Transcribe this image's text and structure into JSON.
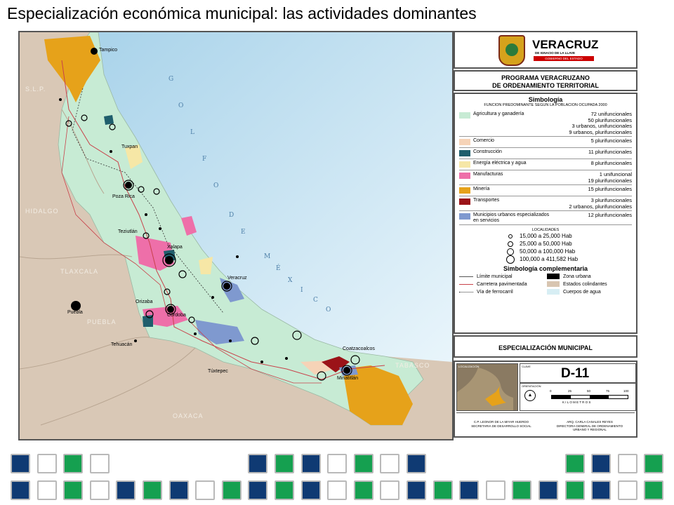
{
  "slide": {
    "title": "Especialización económica municipal: las actividades dominantes"
  },
  "map": {
    "city_labels": {
      "tampico": "Tampico",
      "tuxpan": "Tuxpan",
      "poza_rica": "Poza Rica",
      "teziutlan": "Teziutlán",
      "xalapa": "Xalapa",
      "veracruz": "Veracruz",
      "orizaba": "Orizaba",
      "cordoba": "Córdoba",
      "puebla": "Puebla",
      "tehuacan": "Tehuacán",
      "tuxtepec": "Túxtepec",
      "coatzacoalcos": "Coatzacoalcos",
      "minatitlan": "Minatitlán"
    },
    "region_labels": {
      "slp": "S.L.P.",
      "hidalgo": "HIDALGO",
      "tlaxcala": "TLAXCALA",
      "puebla": "PUEBLA",
      "oaxaca": "OAXACA",
      "tabasco": "TABASCO"
    },
    "sea_letters": {
      "golfo": [
        "G",
        "O",
        "L",
        "F",
        "O"
      ],
      "de": [
        "D",
        "E"
      ],
      "mexico": [
        "M",
        "É",
        "X",
        "I",
        "C",
        "O"
      ]
    }
  },
  "header": {
    "brand": "VERACRUZ",
    "brand_sub": "DE IGNACIO DE LA LLAVE",
    "brand_gov": "GOBIERNO DEL ESTADO",
    "program_line1": "PROGRAMA VERACRUZANO",
    "program_line2": "DE ORDENAMIENTO TERRITORIAL"
  },
  "legend": {
    "title": "Simbología",
    "subtitle": "FUNCION PREDOMINANTE SEGUN LA POBLACION OCUPADA 2000",
    "items": [
      {
        "name": "Agricultura y ganadería",
        "color": "#c7ebd4",
        "counts": [
          "72 unifuncionales",
          "50 plurifuncionales",
          "3 urbanos, unifuncionales",
          "9 urbanos, plurifuncionales"
        ]
      },
      {
        "name": "Comercio",
        "color": "#f6d3b7",
        "counts": [
          "5 plurifuncionales"
        ]
      },
      {
        "name": "Construcción",
        "color": "#1f5e6c",
        "counts": [
          "11 plurifuncionales"
        ]
      },
      {
        "name": "Energía eléctrica y agua",
        "color": "#f6e7a6",
        "counts": [
          "8 plurifuncionales"
        ]
      },
      {
        "name": "Manufacturas",
        "color": "#ee6fa9",
        "counts": [
          "1 unifuncional",
          "19 plurifuncionales"
        ]
      },
      {
        "name": "Minería",
        "color": "#e6a21a",
        "counts": [
          "15 plurifuncionales"
        ]
      },
      {
        "name": "Transportes",
        "color": "#9b1318",
        "counts": [
          "3 plurifuncionales",
          "2 urbanos, plurifuncionales"
        ]
      },
      {
        "name": "Municipios urbanos especializados en servicios",
        "color": "#7f99cf",
        "counts": [
          "12 plurifuncionales"
        ]
      }
    ],
    "localities_title": "LOCALIDADES",
    "localities": [
      {
        "range": "15,000 a   25,000 Hab"
      },
      {
        "range": "25,000 a   50,000 Hab"
      },
      {
        "range": "50,000 a 100,000 Hab"
      },
      {
        "range": "100,000 a 411,582 Hab"
      }
    ],
    "complementary_title": "Simbología complementaria",
    "complementary": [
      {
        "label": "Límite municipal"
      },
      {
        "label": "Zona urbana",
        "color": "#000000"
      },
      {
        "label": "Carretera pavimentada"
      },
      {
        "label": "Estados colindantes",
        "color": "#d8c5b1"
      },
      {
        "label": "Vía de ferrocarril"
      },
      {
        "label": "Cuerpos de agua",
        "color": "#d7eef4"
      }
    ]
  },
  "footer": {
    "specialization": "ESPECIALIZACIÓN MUNICIPAL",
    "location_label": "LOCALIZACIÓN",
    "key_label": "CLAVE",
    "key_value": "D-11",
    "orientation_label": "ORIENTACIÓN",
    "scale_ticks": [
      "0",
      "25",
      "50",
      "75",
      "100"
    ],
    "scale_unit": "K I L O M E T R O S",
    "signer1_name": "C.P. LEONOR DE LA MIYAR HUERDO",
    "signer1_role": "SECRETARIA DE DESARROLLO SOCIAL",
    "signer2_name": "ARQ. CARLA CANALES REYES",
    "signer2_role_line1": "DIRECTORA GENERAL DE ORDENAMIENTO",
    "signer2_role_line2": "URBANO Y REGIONAL"
  },
  "decoration": {
    "colors": {
      "navy": "#0f3a73",
      "green": "#15a050",
      "white": "#ffffff"
    }
  }
}
